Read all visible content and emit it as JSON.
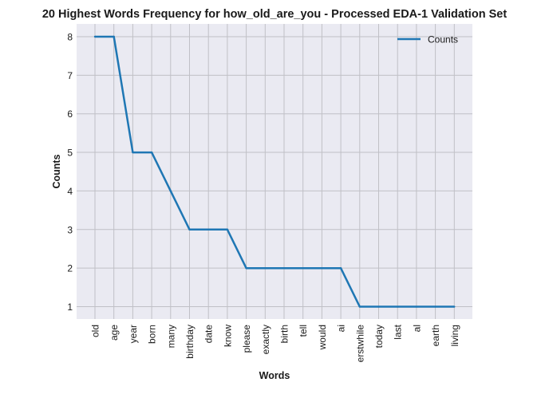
{
  "chart_data": {
    "type": "line",
    "title": "20 Highest Words Frequency for how_old_are_you - Processed EDA-1 Validation Set",
    "xlabel": "Words",
    "ylabel": "Counts",
    "categories": [
      "old",
      "age",
      "year",
      "born",
      "many",
      "birthday",
      "date",
      "know",
      "please",
      "exactly",
      "birth",
      "tell",
      "would",
      "ai",
      "erstwhile",
      "today",
      "last",
      "al",
      "earth",
      "living"
    ],
    "series": [
      {
        "name": "Counts",
        "values": [
          8,
          8,
          5,
          5,
          4,
          3,
          3,
          3,
          2,
          2,
          2,
          2,
          2,
          2,
          1,
          1,
          1,
          1,
          1,
          1
        ]
      }
    ],
    "ylim": [
      0.68,
      8.33
    ],
    "yticks": [
      1,
      2,
      3,
      4,
      5,
      6,
      7,
      8
    ],
    "grid": true,
    "legend_position": "top-right",
    "colors": {
      "line": "#1f77b4",
      "plot_background": "#eaeaf2",
      "grid": "#c0c0c6"
    }
  }
}
